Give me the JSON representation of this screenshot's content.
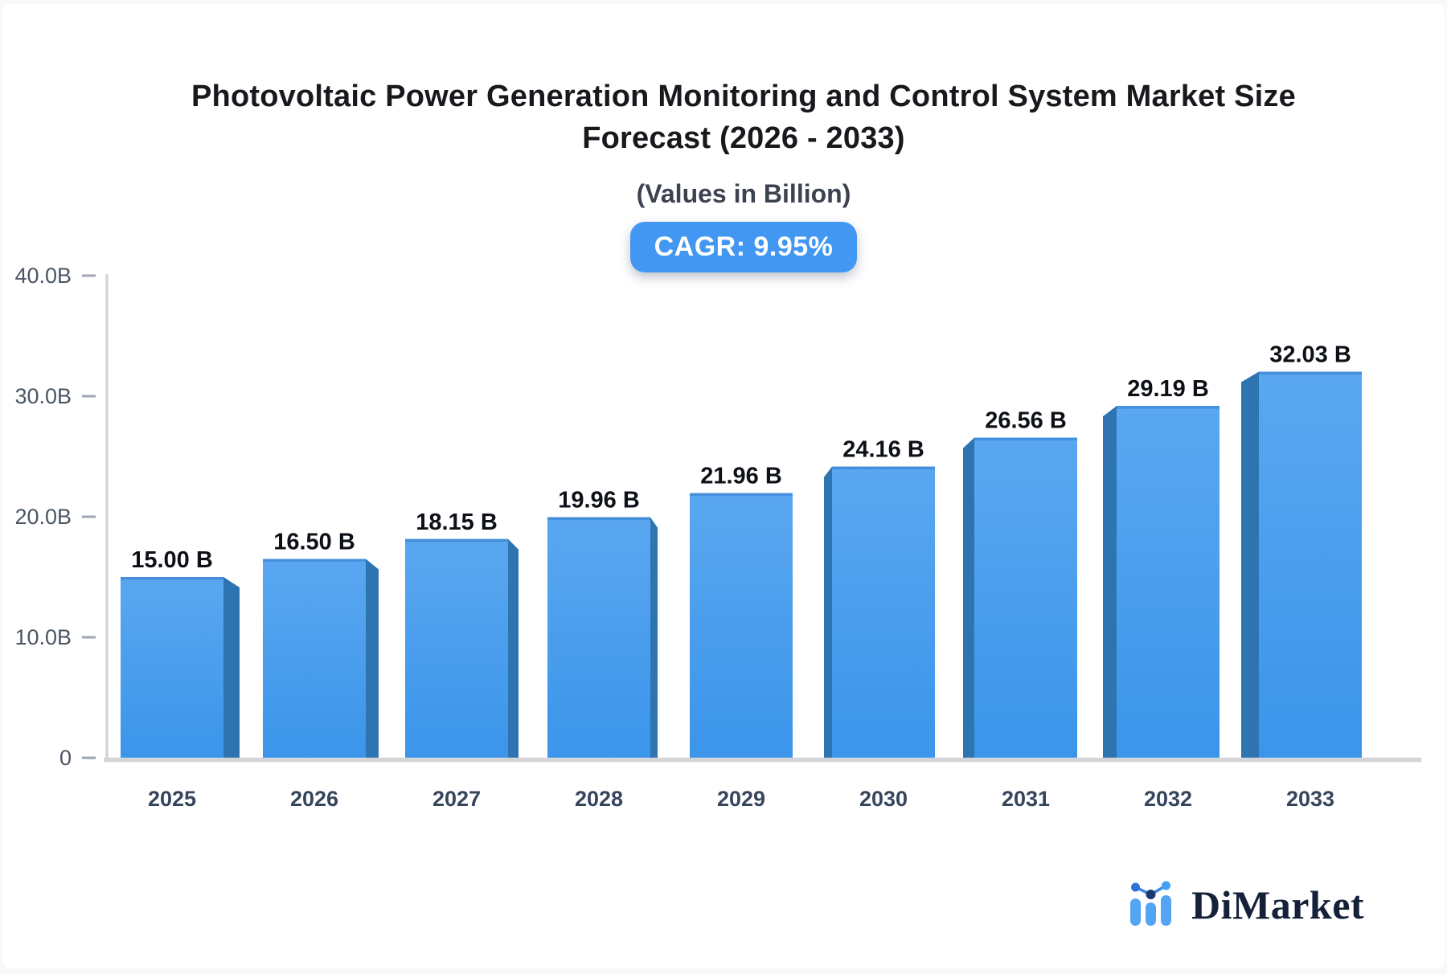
{
  "page": {
    "background": "#f7f8f9",
    "card_background": "#ffffff"
  },
  "header": {
    "title": "Photovoltaic Power Generation Monitoring and Control System Market Size Forecast (2026 - 2033)",
    "title_lines": [
      "Photovoltaic Power Generation Monitoring and Control System Market Size",
      "Forecast (2026 - 2033)"
    ],
    "subtitle": "(Values in Billion)",
    "cagr_label": "CAGR: 9.95%"
  },
  "footer": {
    "brand": "DiMarket"
  },
  "chart_data": {
    "type": "bar",
    "title": "Photovoltaic Power Generation Monitoring and Control System Market Size Forecast (2026 - 2033)",
    "subtitle": "(Values in Billion)",
    "cagr": "9.95%",
    "unit": "Billion",
    "categories": [
      "2025",
      "2026",
      "2027",
      "2028",
      "2029",
      "2030",
      "2031",
      "2032",
      "2033"
    ],
    "values": [
      15.0,
      16.5,
      18.15,
      19.96,
      21.96,
      24.16,
      26.56,
      29.19,
      32.03
    ],
    "value_labels": [
      "15.00 B",
      "16.50 B",
      "18.15 B",
      "19.96 B",
      "21.96 B",
      "24.16 B",
      "26.56 B",
      "29.19 B",
      "32.03 B"
    ],
    "xlabel": "",
    "ylabel": "",
    "ylim": [
      0,
      40
    ],
    "yticks": [
      {
        "value": 0,
        "label": "0"
      },
      {
        "value": 10,
        "label": "10.0B"
      },
      {
        "value": 20,
        "label": "20.0B"
      },
      {
        "value": 30,
        "label": "30.0B"
      },
      {
        "value": 40,
        "label": "40.0B"
      }
    ],
    "grid": false,
    "legend": "none",
    "style": "3d-perspective-bars",
    "colors": {
      "bar_front_top": "#5aa7f0",
      "bar_front_bottom": "#3b95ea",
      "bar_side": "#2e74b0",
      "bar_top_edge": "#4590dd",
      "axis_line": "#d4d5d9",
      "tick_mark": "#9fa6b2",
      "tick_label": "#4b5563",
      "year_label": "#36455c",
      "value_label": "#0d1117",
      "badge_bg": "#4197f2",
      "badge_text": "#ffffff"
    }
  }
}
